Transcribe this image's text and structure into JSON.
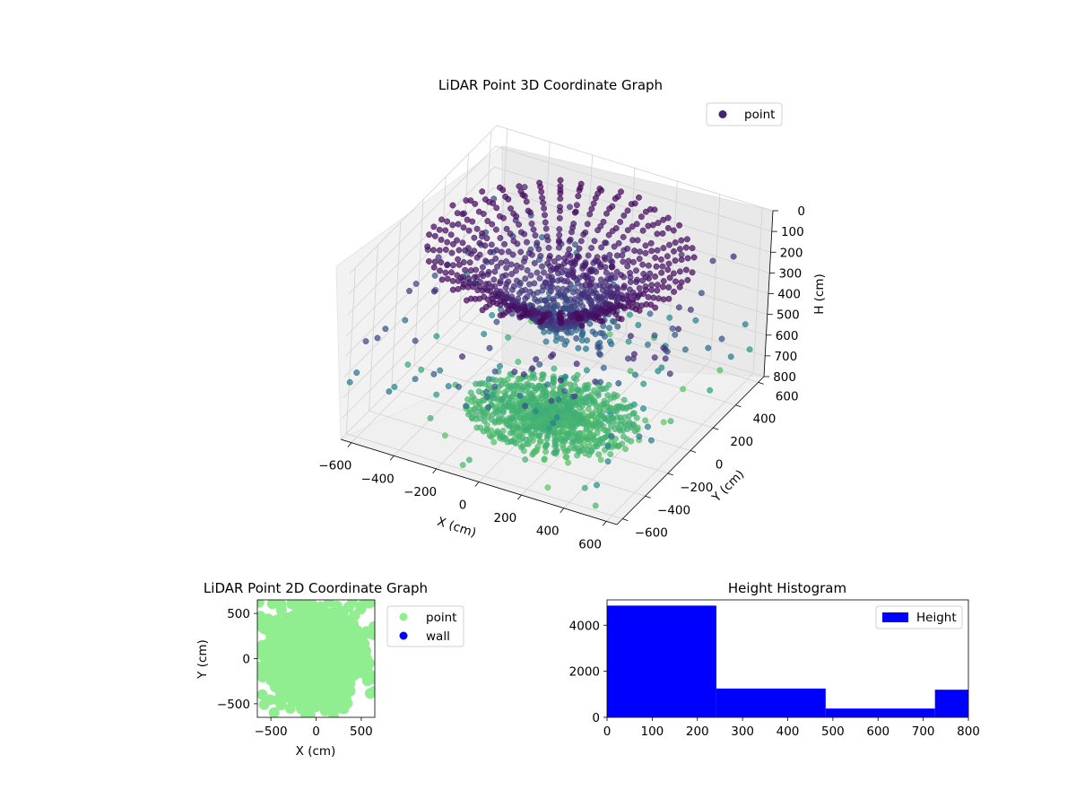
{
  "chart_data": [
    {
      "type": "scatter3d",
      "title": "LiDAR Point 3D Coordinate Graph",
      "xlabel": "X (cm)",
      "ylabel": "Y (cm)",
      "zlabel": "H (cm)",
      "xlim": [
        -650,
        650
      ],
      "ylim": [
        -650,
        650
      ],
      "zlim": [
        800,
        0
      ],
      "xticks": [
        -600,
        -400,
        -200,
        0,
        200,
        400,
        600
      ],
      "yticks": [
        -600,
        -400,
        -200,
        0,
        200,
        400,
        600
      ],
      "zticks": [
        0,
        100,
        200,
        300,
        400,
        500,
        600,
        700,
        800
      ],
      "grid": true,
      "legend": {
        "position": "top-right",
        "entries": [
          {
            "label": "point",
            "color": "#482173"
          }
        ]
      },
      "colormap": "viridis"
    },
    {
      "type": "scatter",
      "title": "LiDAR Point 2D Coordinate Graph",
      "xlabel": "X (cm)",
      "ylabel": "Y (cm)",
      "xlim": [
        -650,
        650
      ],
      "ylim": [
        -650,
        650
      ],
      "xticks": [
        -500,
        0,
        500
      ],
      "yticks": [
        -500,
        0,
        500
      ],
      "legend": {
        "position": "outside-right",
        "entries": [
          {
            "label": "point",
            "color": "#90ee90"
          },
          {
            "label": "wall",
            "color": "#0000ff"
          }
        ]
      }
    },
    {
      "type": "histogram",
      "title": "Height Histogram",
      "xlabel": "",
      "ylabel": "",
      "xlim": [
        0,
        800
      ],
      "ylim": [
        0,
        5100
      ],
      "xticks": [
        0,
        100,
        200,
        300,
        400,
        500,
        600,
        700,
        800
      ],
      "yticks": [
        0,
        2000,
        4000
      ],
      "bins": [
        0,
        242,
        484,
        726,
        800
      ],
      "values": [
        4850,
        1250,
        380,
        1200
      ],
      "color": "#0000ff",
      "legend": {
        "position": "top-right",
        "entries": [
          {
            "label": "Height",
            "color": "#0000ff"
          }
        ]
      }
    }
  ]
}
